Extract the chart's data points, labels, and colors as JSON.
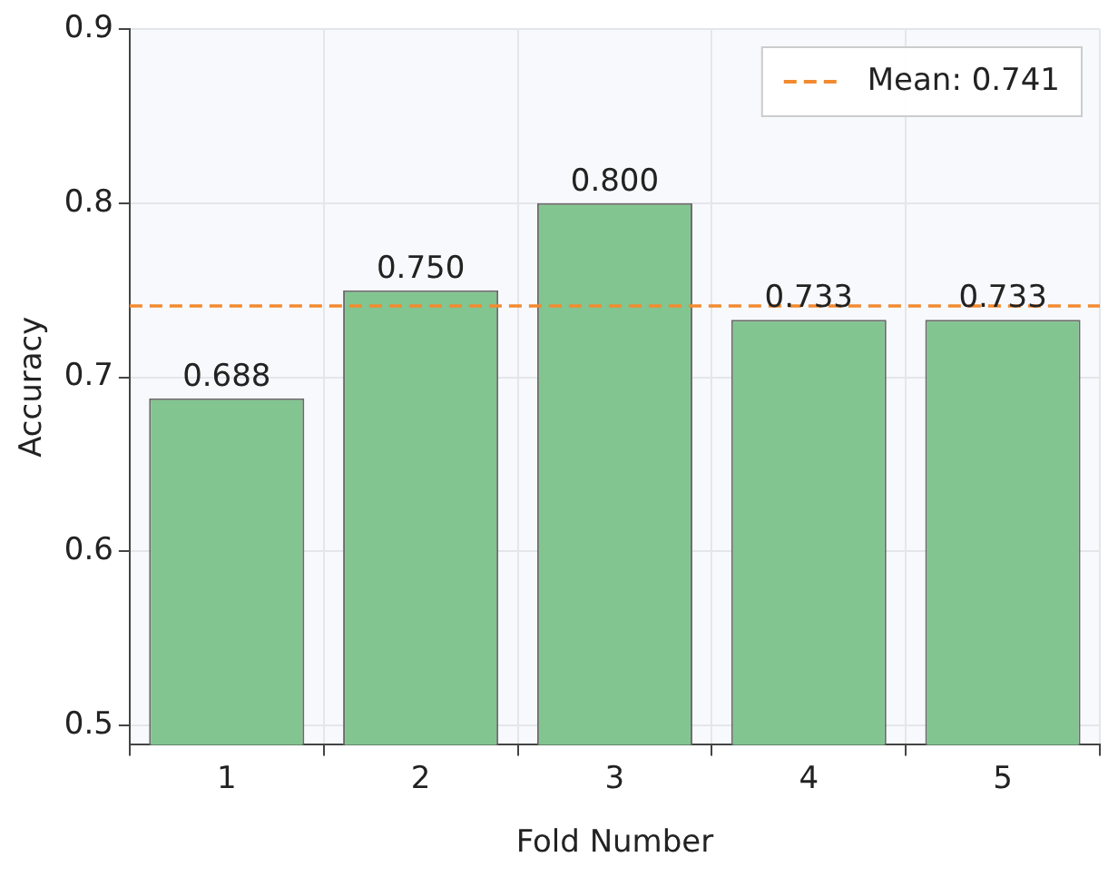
{
  "chart_data": {
    "type": "bar",
    "xlabel": "Fold Number",
    "ylabel": "Accuracy",
    "categories": [
      "1",
      "2",
      "3",
      "4",
      "5"
    ],
    "values": [
      0.688,
      0.75,
      0.8,
      0.733,
      0.733
    ],
    "color": "#82c590",
    "value_labels": [
      "0.688",
      "0.750",
      "0.800",
      "0.733",
      "0.733"
    ],
    "ylim": [
      0.489,
      0.9
    ],
    "yticks": [
      0.5,
      0.6,
      0.7,
      0.8,
      0.9
    ],
    "ref_lines": [
      {
        "axis": "y",
        "value": 0.741,
        "label": "Mean: 0.741",
        "color": "#f28a30",
        "line_style": "dashed"
      }
    ],
    "grid": true,
    "legend": "top right"
  }
}
